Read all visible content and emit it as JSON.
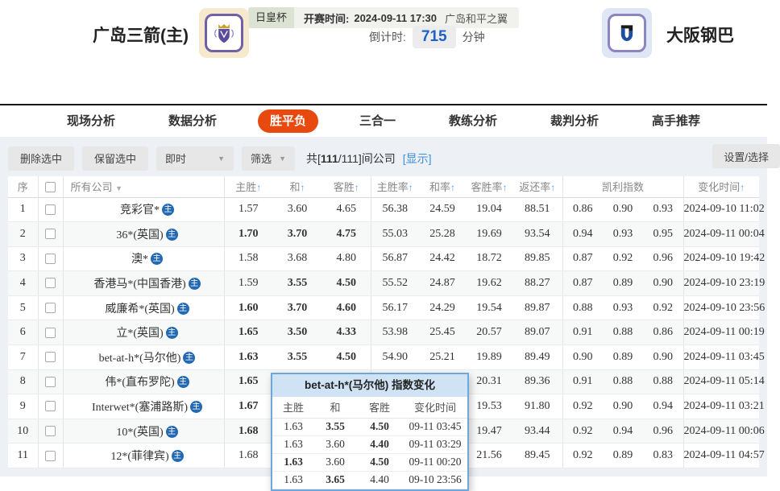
{
  "colors": {
    "red": "#e6391e",
    "green": "#1fa11f",
    "link_blue": "#3e8ede",
    "arrow_blue": "#58a0e8",
    "accent_orange": "#e8490e",
    "count_blue": "#1e62c8"
  },
  "top_bar": {
    "league": "日皇杯",
    "kickoff_label": "开赛时间:",
    "kickoff_value": "2024-09-11 17:30",
    "venue": "广岛和平之翼"
  },
  "match": {
    "home_name": "广岛三箭(主)",
    "away_name": "大阪钢巴",
    "countdown_label": "倒计时:",
    "countdown_value": "715",
    "countdown_unit": "分钟"
  },
  "nav": {
    "tabs": [
      "现场分析",
      "数据分析",
      "胜平负",
      "三合一",
      "教练分析",
      "裁判分析",
      "高手推荐"
    ],
    "active_index": 2
  },
  "toolbar": {
    "btn_delete": "删除选中",
    "btn_keep": "保留选中",
    "dd_instant": "即时",
    "dd_filter": "筛选",
    "count_prefix": "共[",
    "count_bold": "111",
    "count_rest": "/111]间公司",
    "link_show": "[显示]",
    "btn_settings": "设置/选择"
  },
  "table": {
    "headers": {
      "seq": "序",
      "company": "所有公司",
      "home": "主胜",
      "draw": "和",
      "away": "客胜",
      "home_rate": "主胜率",
      "draw_rate": "和率",
      "away_rate": "客胜率",
      "payout": "返还率",
      "kelly": "凯利指数",
      "time": "变化时间"
    },
    "company_icon": "主",
    "rows": [
      {
        "no": "1",
        "company": "竞彩官*",
        "odds": [
          {
            "v": "1.57",
            "c": "k"
          },
          {
            "v": "3.60",
            "c": "k"
          },
          {
            "v": "4.65",
            "c": "k"
          }
        ],
        "rates": [
          "56.38",
          "24.59",
          "19.04",
          "88.51"
        ],
        "kelly": [
          "0.86",
          "0.90",
          "0.93"
        ],
        "time": "2024-09-10 11:02"
      },
      {
        "no": "2",
        "company": "36*(英国)",
        "odds": [
          {
            "v": "1.70",
            "c": "r"
          },
          {
            "v": "3.70",
            "c": "g"
          },
          {
            "v": "4.75",
            "c": "g"
          }
        ],
        "rates": [
          "55.03",
          "25.28",
          "19.69",
          "93.54"
        ],
        "kelly": [
          "0.94",
          "0.93",
          "0.95"
        ],
        "time": "2024-09-11 00:04"
      },
      {
        "no": "3",
        "company": "澳*",
        "odds": [
          {
            "v": "1.58",
            "c": "k"
          },
          {
            "v": "3.68",
            "c": "k"
          },
          {
            "v": "4.80",
            "c": "k"
          }
        ],
        "rates": [
          "56.87",
          "24.42",
          "18.72",
          "89.85"
        ],
        "kelly": [
          "0.87",
          "0.92",
          "0.96"
        ],
        "time": "2024-09-10 19:42"
      },
      {
        "no": "4",
        "company": "香港马*(中国香港)",
        "odds": [
          {
            "v": "1.59",
            "c": "k"
          },
          {
            "v": "3.55",
            "c": "r"
          },
          {
            "v": "4.50",
            "c": "g"
          }
        ],
        "rates": [
          "55.52",
          "24.87",
          "19.62",
          "88.27"
        ],
        "kelly": [
          "0.87",
          "0.89",
          "0.90"
        ],
        "time": "2024-09-10 23:19"
      },
      {
        "no": "5",
        "company": "威廉希*(英国)",
        "odds": [
          {
            "v": "1.60",
            "c": "r"
          },
          {
            "v": "3.70",
            "c": "r"
          },
          {
            "v": "4.60",
            "c": "g"
          }
        ],
        "rates": [
          "56.17",
          "24.29",
          "19.54",
          "89.87"
        ],
        "kelly": [
          "0.88",
          "0.93",
          "0.92"
        ],
        "time": "2024-09-10 23:56"
      },
      {
        "no": "6",
        "company": "立*(英国)",
        "odds": [
          {
            "v": "1.65",
            "c": "r"
          },
          {
            "v": "3.50",
            "c": "g"
          },
          {
            "v": "4.33",
            "c": "g"
          }
        ],
        "rates": [
          "53.98",
          "25.45",
          "20.57",
          "89.07"
        ],
        "kelly": [
          "0.91",
          "0.88",
          "0.86"
        ],
        "time": "2024-09-11 00:19"
      },
      {
        "no": "7",
        "company": "bet-at-h*(马尔他)",
        "odds": [
          {
            "v": "1.63",
            "c": "r"
          },
          {
            "v": "3.55",
            "c": "g"
          },
          {
            "v": "4.50",
            "c": "g"
          }
        ],
        "rates": [
          "54.90",
          "25.21",
          "19.89",
          "89.49"
        ],
        "kelly": [
          "0.90",
          "0.89",
          "0.90"
        ],
        "time": "2024-09-11 03:45"
      },
      {
        "no": "8",
        "company": "伟*(直布罗陀)",
        "odds": [
          {
            "v": "1.65",
            "c": "r"
          },
          {
            "v": "",
            "c": "k"
          },
          {
            "v": "",
            "c": "k"
          }
        ],
        "rates": [
          "",
          "",
          "20.31",
          "89.36"
        ],
        "kelly": [
          "0.91",
          "0.88",
          "0.88"
        ],
        "time": "2024-09-11 05:14"
      },
      {
        "no": "9",
        "company": "Interwet*(塞浦路斯)",
        "odds": [
          {
            "v": "1.67",
            "c": "r"
          },
          {
            "v": "",
            "c": "k"
          },
          {
            "v": "",
            "c": "k"
          }
        ],
        "rates": [
          "",
          "",
          "19.53",
          "91.80"
        ],
        "kelly": [
          "0.92",
          "0.90",
          "0.94"
        ],
        "time": "2024-09-11 03:21"
      },
      {
        "no": "10",
        "company": "10*(英国)",
        "odds": [
          {
            "v": "1.68",
            "c": "r"
          },
          {
            "v": "",
            "c": "k"
          },
          {
            "v": "",
            "c": "k"
          }
        ],
        "rates": [
          "",
          "",
          "19.47",
          "93.44"
        ],
        "kelly": [
          "0.92",
          "0.94",
          "0.96"
        ],
        "time": "2024-09-11 00:06"
      },
      {
        "no": "11",
        "company": "12*(菲律宾)",
        "odds": [
          {
            "v": "1.68",
            "c": "k"
          },
          {
            "v": "",
            "c": "k"
          },
          {
            "v": "",
            "c": "k"
          }
        ],
        "rates": [
          "",
          "",
          "21.56",
          "89.45"
        ],
        "kelly": [
          "0.92",
          "0.89",
          "0.83"
        ],
        "time": "2024-09-11 04:57"
      }
    ]
  },
  "popup": {
    "title": "bet-at-h*(马尔他) 指数变化",
    "headers": [
      "主胜",
      "和",
      "客胜",
      "变化时间"
    ],
    "rows": [
      {
        "cells": [
          {
            "v": "1.63",
            "c": "k"
          },
          {
            "v": "3.55",
            "c": "g"
          },
          {
            "v": "4.50",
            "c": "r"
          }
        ],
        "time": "09-11 03:45"
      },
      {
        "cells": [
          {
            "v": "1.63",
            "c": "k"
          },
          {
            "v": "3.60",
            "c": "k"
          },
          {
            "v": "4.40",
            "c": "g"
          }
        ],
        "time": "09-11 03:29"
      },
      {
        "cells": [
          {
            "v": "1.63",
            "c": "r"
          },
          {
            "v": "3.60",
            "c": "k"
          },
          {
            "v": "4.50",
            "c": "g"
          }
        ],
        "time": "09-11 00:20"
      },
      {
        "cells": [
          {
            "v": "1.63",
            "c": "k"
          },
          {
            "v": "3.65",
            "c": "r"
          },
          {
            "v": "4.40",
            "c": "k"
          }
        ],
        "time": "09-10 23:56"
      }
    ]
  }
}
